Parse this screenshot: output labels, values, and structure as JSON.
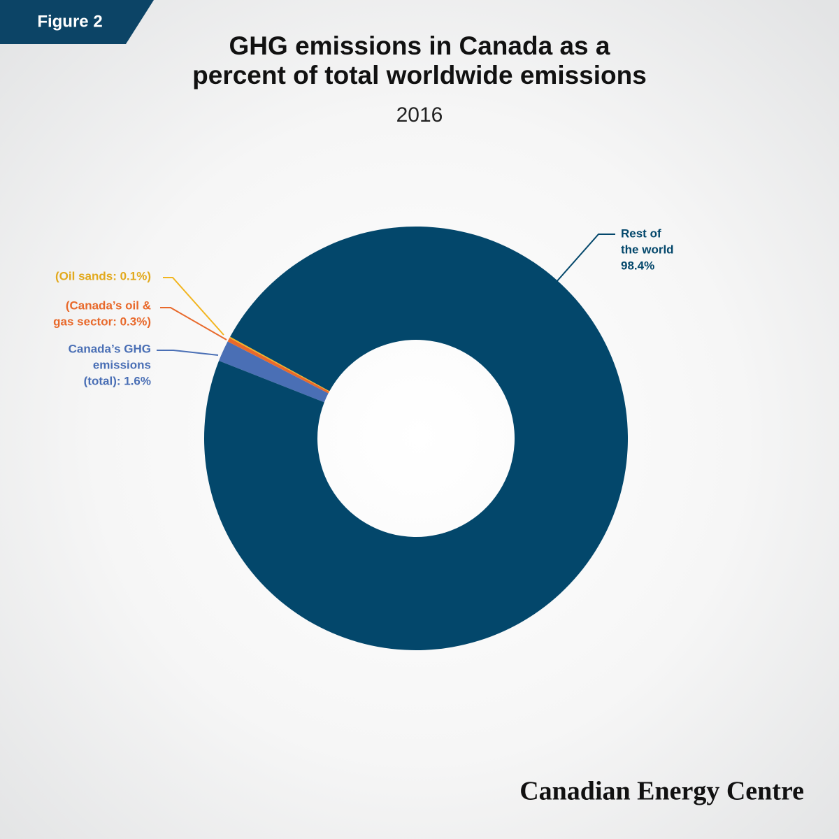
{
  "chart_data": {
    "type": "donut",
    "figure_label": "Figure 2",
    "title": [
      "GHG emissions in Canada as a",
      "percent of total worldwide emissions"
    ],
    "subtitle": "2016",
    "categories": [
      "Canada’s GHG emissions (total)",
      "Canada’s oil & gas sector",
      "Oil sands",
      "Rest of the world"
    ],
    "values": [
      1.6,
      0.3,
      0.1,
      98.4
    ],
    "labels": [
      [
        "Canada’s GHG",
        "emissions",
        "(total): 1.6%"
      ],
      [
        "(Canada’s oil &",
        "gas sector: 0.3%)"
      ],
      [
        "(Oil sands: 0.1%)"
      ],
      [
        "Rest of",
        "the world",
        "98.4%"
      ]
    ],
    "colors": [
      "#4a6fb5",
      "#e8692b",
      "#f2b51f",
      "#03476b"
    ],
    "label_colors": [
      "#4a6fb5",
      "#e8692b",
      "#e2a91c",
      "#03476b"
    ],
    "footer": "Canadian Energy Centre"
  }
}
